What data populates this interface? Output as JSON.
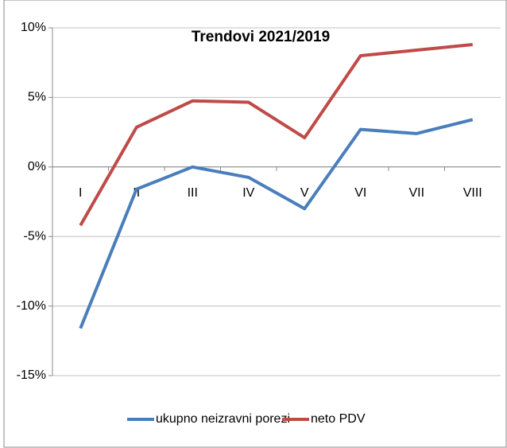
{
  "chart_data": {
    "type": "line",
    "title": "Trendovi 2021/2019",
    "categories": [
      "I",
      "II",
      "III",
      "IV",
      "V",
      "VI",
      "VII",
      "VIII"
    ],
    "series": [
      {
        "name": "ukupno neizravni porezi",
        "color": "#4a7ebb",
        "values": [
          -11.6,
          -1.6,
          0,
          -0.75,
          -3.0,
          2.7,
          2.4,
          3.4
        ]
      },
      {
        "name": "neto PDV",
        "color": "#be4b48",
        "values": [
          -4.2,
          2.85,
          4.75,
          4.65,
          2.1,
          8.0,
          8.4,
          8.8
        ]
      }
    ],
    "ylim": [
      -15,
      10
    ],
    "yticks": [
      {
        "value": -15,
        "label": "-15%"
      },
      {
        "value": -10,
        "label": "-10%"
      },
      {
        "value": -5,
        "label": "-5%"
      },
      {
        "value": 0,
        "label": "0%"
      },
      {
        "value": 5,
        "label": "5%"
      },
      {
        "value": 10,
        "label": "10%"
      }
    ],
    "grid": true,
    "legend": "bottom"
  }
}
